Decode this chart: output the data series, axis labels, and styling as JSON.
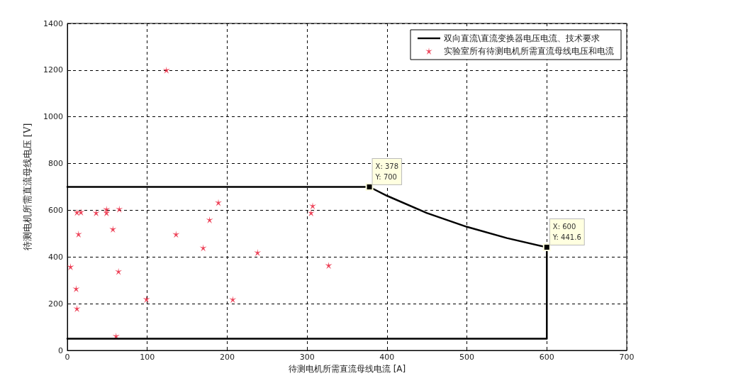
{
  "chart_data": {
    "type": "line",
    "xlabel": "待测电机所需直流母线电流 [A]",
    "ylabel": "待测电机所需直流母线电压 [V]",
    "xlim": [
      0,
      700
    ],
    "xticks": [
      0,
      100,
      200,
      300,
      400,
      500,
      600,
      700
    ],
    "ylim": [
      0,
      1400
    ],
    "yticks": [
      0,
      200,
      400,
      600,
      800,
      1000,
      1200,
      1400
    ],
    "grid": true,
    "legend": "top right",
    "series": [
      {
        "name": "双向直流\\直流变换器电压电流、技术要求",
        "color": "#000000",
        "marker": "none",
        "line_style": "solid",
        "x": [
          0,
          378,
          400,
          450,
          500,
          550,
          600,
          600,
          0
        ],
        "values": [
          700,
          700,
          662,
          588,
          529,
          481,
          441.6,
          50,
          50
        ]
      },
      {
        "name": "实验室所有待测电机所需直流母线电压和电流",
        "type": "scatter",
        "color": "#e8112d",
        "marker": "star",
        "x": [
          4,
          12,
          17,
          14,
          36,
          49,
          49,
          65,
          57,
          11,
          12,
          64,
          61,
          99,
          136,
          124,
          170,
          178,
          189,
          207,
          238,
          307,
          305,
          327
        ],
        "values": [
          358,
          591,
          592,
          498,
          589,
          604,
          589,
          605,
          519,
          264,
          179,
          338,
          61,
          219,
          497,
          1200,
          439,
          559,
          633,
          218,
          419,
          619,
          589,
          364
        ]
      }
    ],
    "annotations": [
      {
        "text": "X: 378\nY: 700",
        "x": 378,
        "y": 700
      },
      {
        "text": "X: 600\nY: 441.6",
        "x": 600,
        "y": 441.6
      }
    ]
  }
}
